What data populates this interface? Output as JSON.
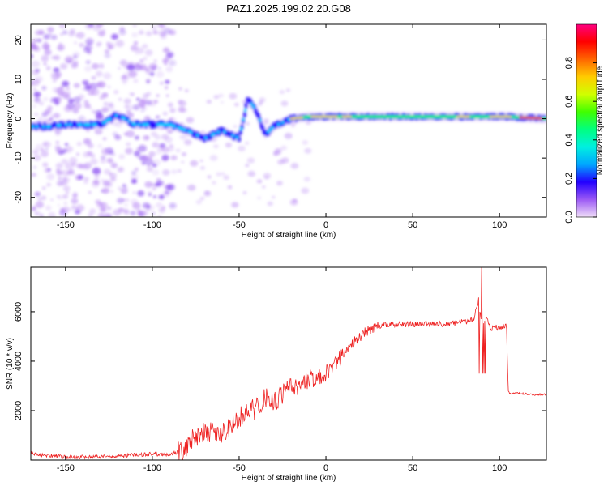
{
  "title": "PAZ1.2025.199.02.20.G08",
  "chart_data": [
    {
      "type": "heatmap",
      "xlabel": "Height of straight line (km)",
      "ylabel": "Frequency (Hz)",
      "xlim": [
        -170,
        127
      ],
      "ylim": [
        -25,
        24
      ],
      "xticks": [
        -150,
        -100,
        -50,
        0,
        50,
        100
      ],
      "yticks": [
        -20,
        -10,
        0,
        10,
        20
      ],
      "xtick_labels": [
        "-150",
        "-100",
        "-50",
        "0",
        "50",
        "100"
      ],
      "ytick_labels": [
        "-20",
        "-10",
        "0",
        "10",
        "20"
      ],
      "ridge": [
        {
          "x": -170,
          "f": -2.0
        },
        {
          "x": -160,
          "f": -2.0
        },
        {
          "x": -150,
          "f": -1.5
        },
        {
          "x": -140,
          "f": -1.5
        },
        {
          "x": -130,
          "f": -1.5
        },
        {
          "x": -120,
          "f": 1.0
        },
        {
          "x": -110,
          "f": -1.5
        },
        {
          "x": -100,
          "f": -1.5
        },
        {
          "x": -90,
          "f": -1.5
        },
        {
          "x": -80,
          "f": -3.0
        },
        {
          "x": -70,
          "f": -5.0
        },
        {
          "x": -60,
          "f": -3.0
        },
        {
          "x": -50,
          "f": -5.0
        },
        {
          "x": -45,
          "f": 5.0
        },
        {
          "x": -40,
          "f": 2.0
        },
        {
          "x": -35,
          "f": -4.0
        },
        {
          "x": -30,
          "f": -2.0
        },
        {
          "x": -25,
          "f": -1.0
        },
        {
          "x": -20,
          "f": 0.0
        },
        {
          "x": -10,
          "f": 0.5
        },
        {
          "x": 0,
          "f": 0.5
        },
        {
          "x": 25,
          "f": 0.5
        },
        {
          "x": 50,
          "f": 0.5
        },
        {
          "x": 75,
          "f": 0.5
        },
        {
          "x": 90,
          "f": 0.5
        },
        {
          "x": 105,
          "f": 0.5
        },
        {
          "x": 127,
          "f": 0.0
        }
      ]
    },
    {
      "type": "line",
      "xlabel": "Height of straight line (km)",
      "ylabel": "SNR (10 * v/v)",
      "xlim": [
        -170,
        127
      ],
      "ylim": [
        0,
        7800
      ],
      "xticks": [
        -150,
        -100,
        -50,
        0,
        50,
        100
      ],
      "yticks": [
        2000,
        4000,
        6000
      ],
      "xtick_labels": [
        "-150",
        "-100",
        "-50",
        "0",
        "50",
        "100"
      ],
      "ytick_labels": [
        "2000",
        "4000",
        "6000"
      ],
      "series": [
        {
          "color": "#ee2222",
          "x": [
            -170,
            -150,
            -130,
            -110,
            -100,
            -90,
            -80,
            -75,
            -70,
            -65,
            -60,
            -55,
            -50,
            -45,
            -40,
            -35,
            -30,
            -25,
            -20,
            -15,
            -10,
            -5,
            0,
            5,
            10,
            15,
            20,
            25,
            30,
            35,
            40,
            50,
            60,
            70,
            80,
            85,
            88,
            90,
            92,
            95,
            100,
            104,
            105,
            106,
            110,
            120,
            127
          ],
          "y": [
            250,
            120,
            120,
            200,
            250,
            200,
            500,
            1000,
            1100,
            1200,
            1100,
            1400,
            1700,
            2000,
            2100,
            2500,
            2400,
            2600,
            3000,
            3000,
            3300,
            3300,
            3500,
            4000,
            4200,
            4700,
            5000,
            5300,
            5400,
            5500,
            5500,
            5500,
            5500,
            5500,
            5600,
            5700,
            6500,
            5200,
            5800,
            5300,
            5400,
            5400,
            2800,
            2700,
            2700,
            2650,
            2650
          ]
        }
      ]
    }
  ],
  "colorbar": {
    "label": "Normalized spectral amplitude",
    "range": [
      0,
      1
    ],
    "ticks": [
      0.0,
      0.2,
      0.4,
      0.6,
      0.8
    ],
    "tick_labels": [
      "0.0",
      "0.2",
      "0.4",
      "0.6",
      "0.8"
    ],
    "colors": [
      "#f0ddf8",
      "#9b59f5",
      "#2200ff",
      "#00a6ff",
      "#00f0e0",
      "#00ff80",
      "#40ff00",
      "#d0ff00",
      "#ffcc00",
      "#ff6600",
      "#ff0000",
      "#ff0080"
    ]
  }
}
